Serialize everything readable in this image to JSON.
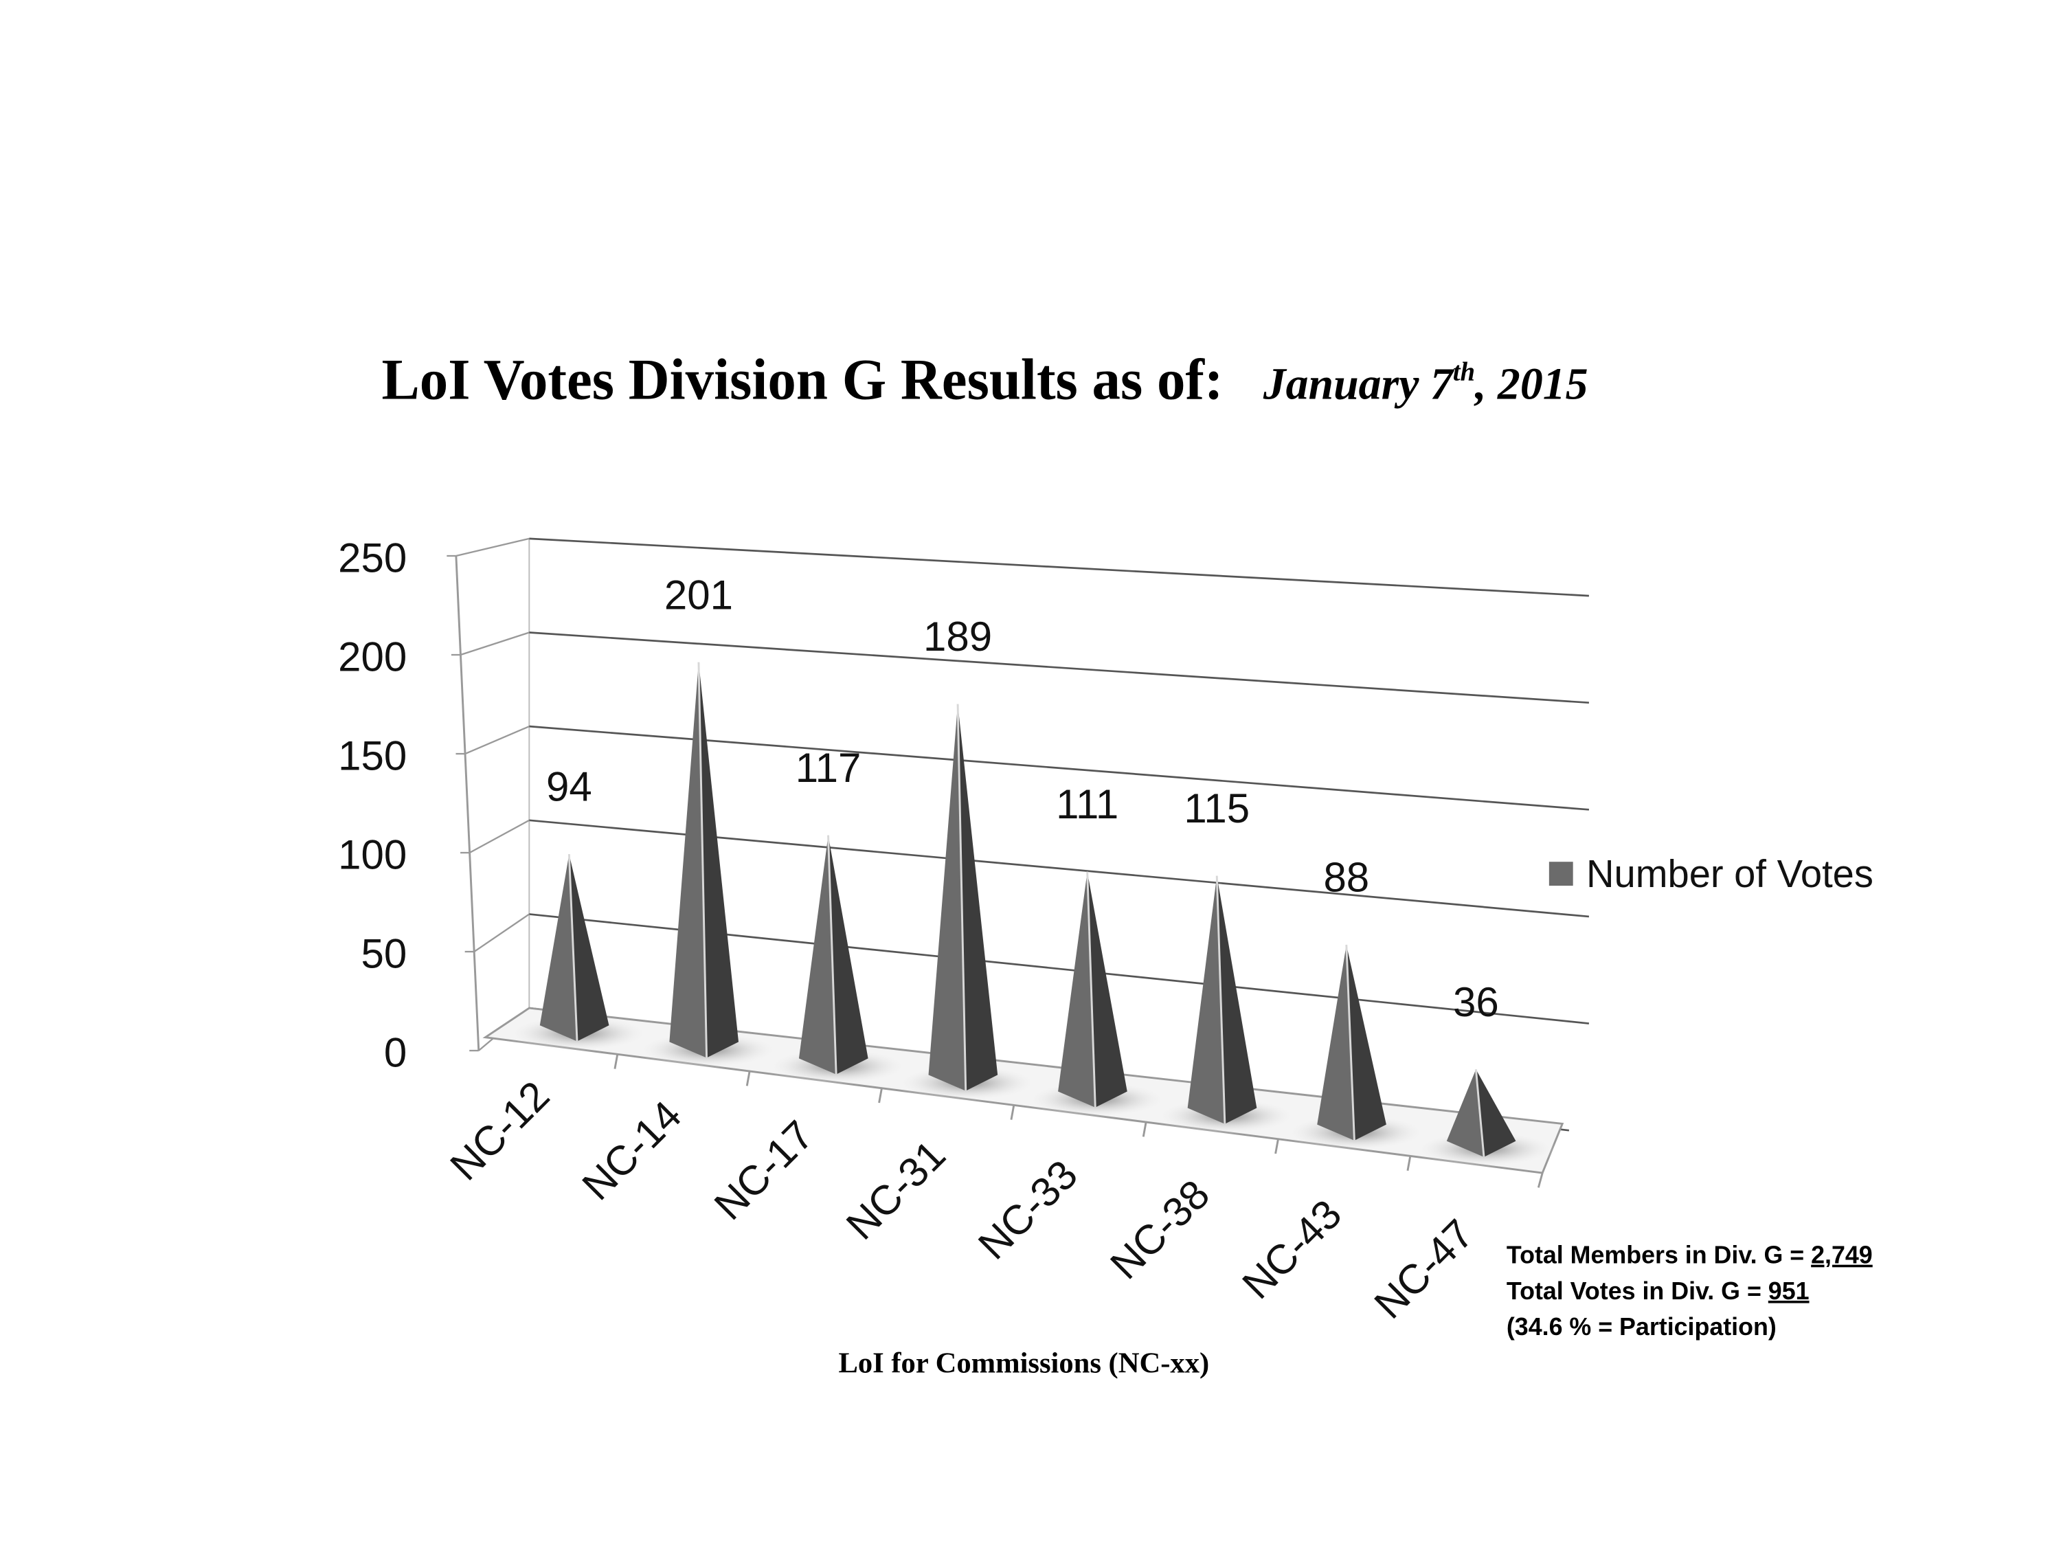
{
  "chart_data": {
    "type": "bar",
    "style": "3d-pyramid",
    "title": "LoI Votes Division G Results as of:",
    "title_date": {
      "month_day": "January 7",
      "suffix": "th",
      "year": ", 2015"
    },
    "xlabel": "LoI for Commissions (NC-xx)",
    "ylabel": "",
    "ylim": [
      0,
      250
    ],
    "yticks": [
      "0",
      "50",
      "100",
      "150",
      "200",
      "250"
    ],
    "grid": true,
    "legend_position": "right",
    "categories": [
      "NC-12",
      "NC-14",
      "NC-17",
      "NC-31",
      "NC-33",
      "NC-38",
      "NC-43",
      "NC-47"
    ],
    "series": [
      {
        "name": "Number of Votes",
        "values": [
          94,
          201,
          117,
          189,
          111,
          115,
          88,
          36
        ],
        "color": "#6b6b6b"
      }
    ],
    "annotations": {
      "members_label": "Total Members in Div. G = ",
      "members_value": "2,749",
      "votes_label": "Total Votes in Div. G = ",
      "votes_value": "951",
      "participation": "(34.6 % = Participation)"
    }
  }
}
